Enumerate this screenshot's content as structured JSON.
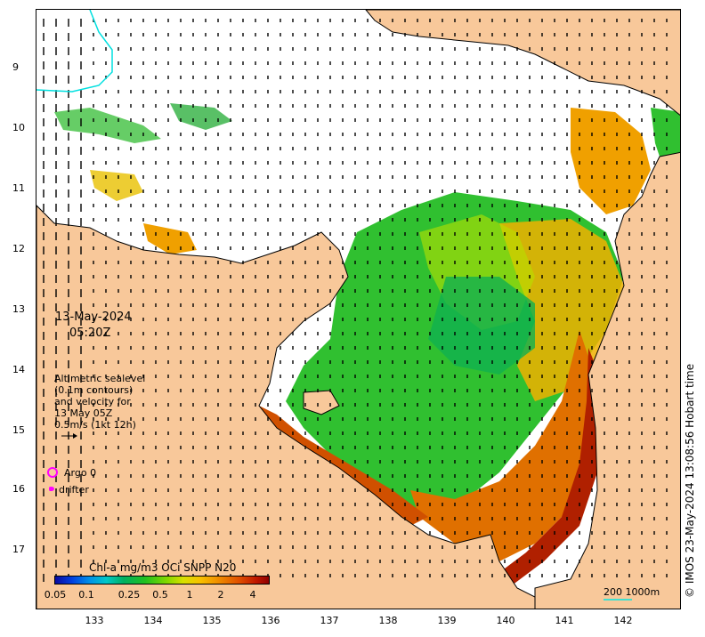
{
  "map": {
    "date": "13-May-2024",
    "time": "05:20Z",
    "legend_lines": [
      "Altimetric sealevel",
      "(0.1m contours)",
      "and velocity for",
      "13 May 05Z",
      "0.5m/s (1kt 12h)"
    ],
    "argo_label": "Argo 0",
    "drifter_label": "drifter",
    "colorbar_title": "Chl-a mg/m3 OCi SNPP N20",
    "colorbar_ticks": [
      "0.05",
      "0.1",
      "0.25",
      "0.5",
      "1",
      "2",
      "4"
    ],
    "scale_label": "200  1000m",
    "credit": "© IMOS 23-May-2024 13:08:56 Hobart time",
    "lat_labels": [
      "9",
      "10",
      "11",
      "12",
      "13",
      "14",
      "15",
      "16",
      "17"
    ],
    "lon_labels": [
      "133",
      "134",
      "135",
      "136",
      "137",
      "138",
      "139",
      "140",
      "141",
      "142"
    ],
    "colors": {
      "land": "#f8c89a",
      "coast": "#000000",
      "chl_high": "#c83000",
      "chl_mid": "#f0a000",
      "chl_low": "#20c040",
      "argo": "#ff00ff",
      "contour": "#00e0e0"
    }
  }
}
